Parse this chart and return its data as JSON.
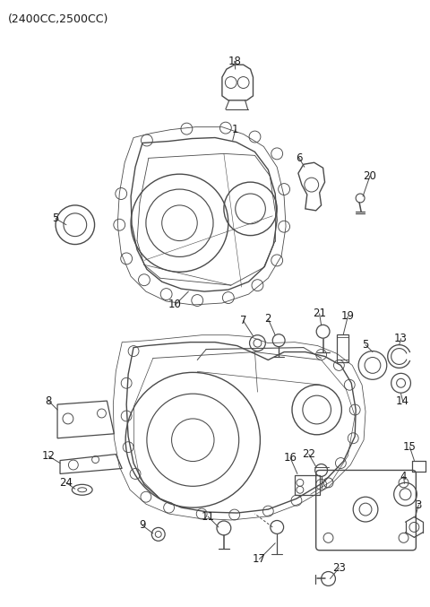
{
  "title": "(2400CC,2500CC)",
  "bg_color": "#ffffff",
  "line_color": "#4a4a4a",
  "text_color": "#1a1a1a",
  "fig_width": 4.8,
  "fig_height": 6.77,
  "dpi": 100
}
